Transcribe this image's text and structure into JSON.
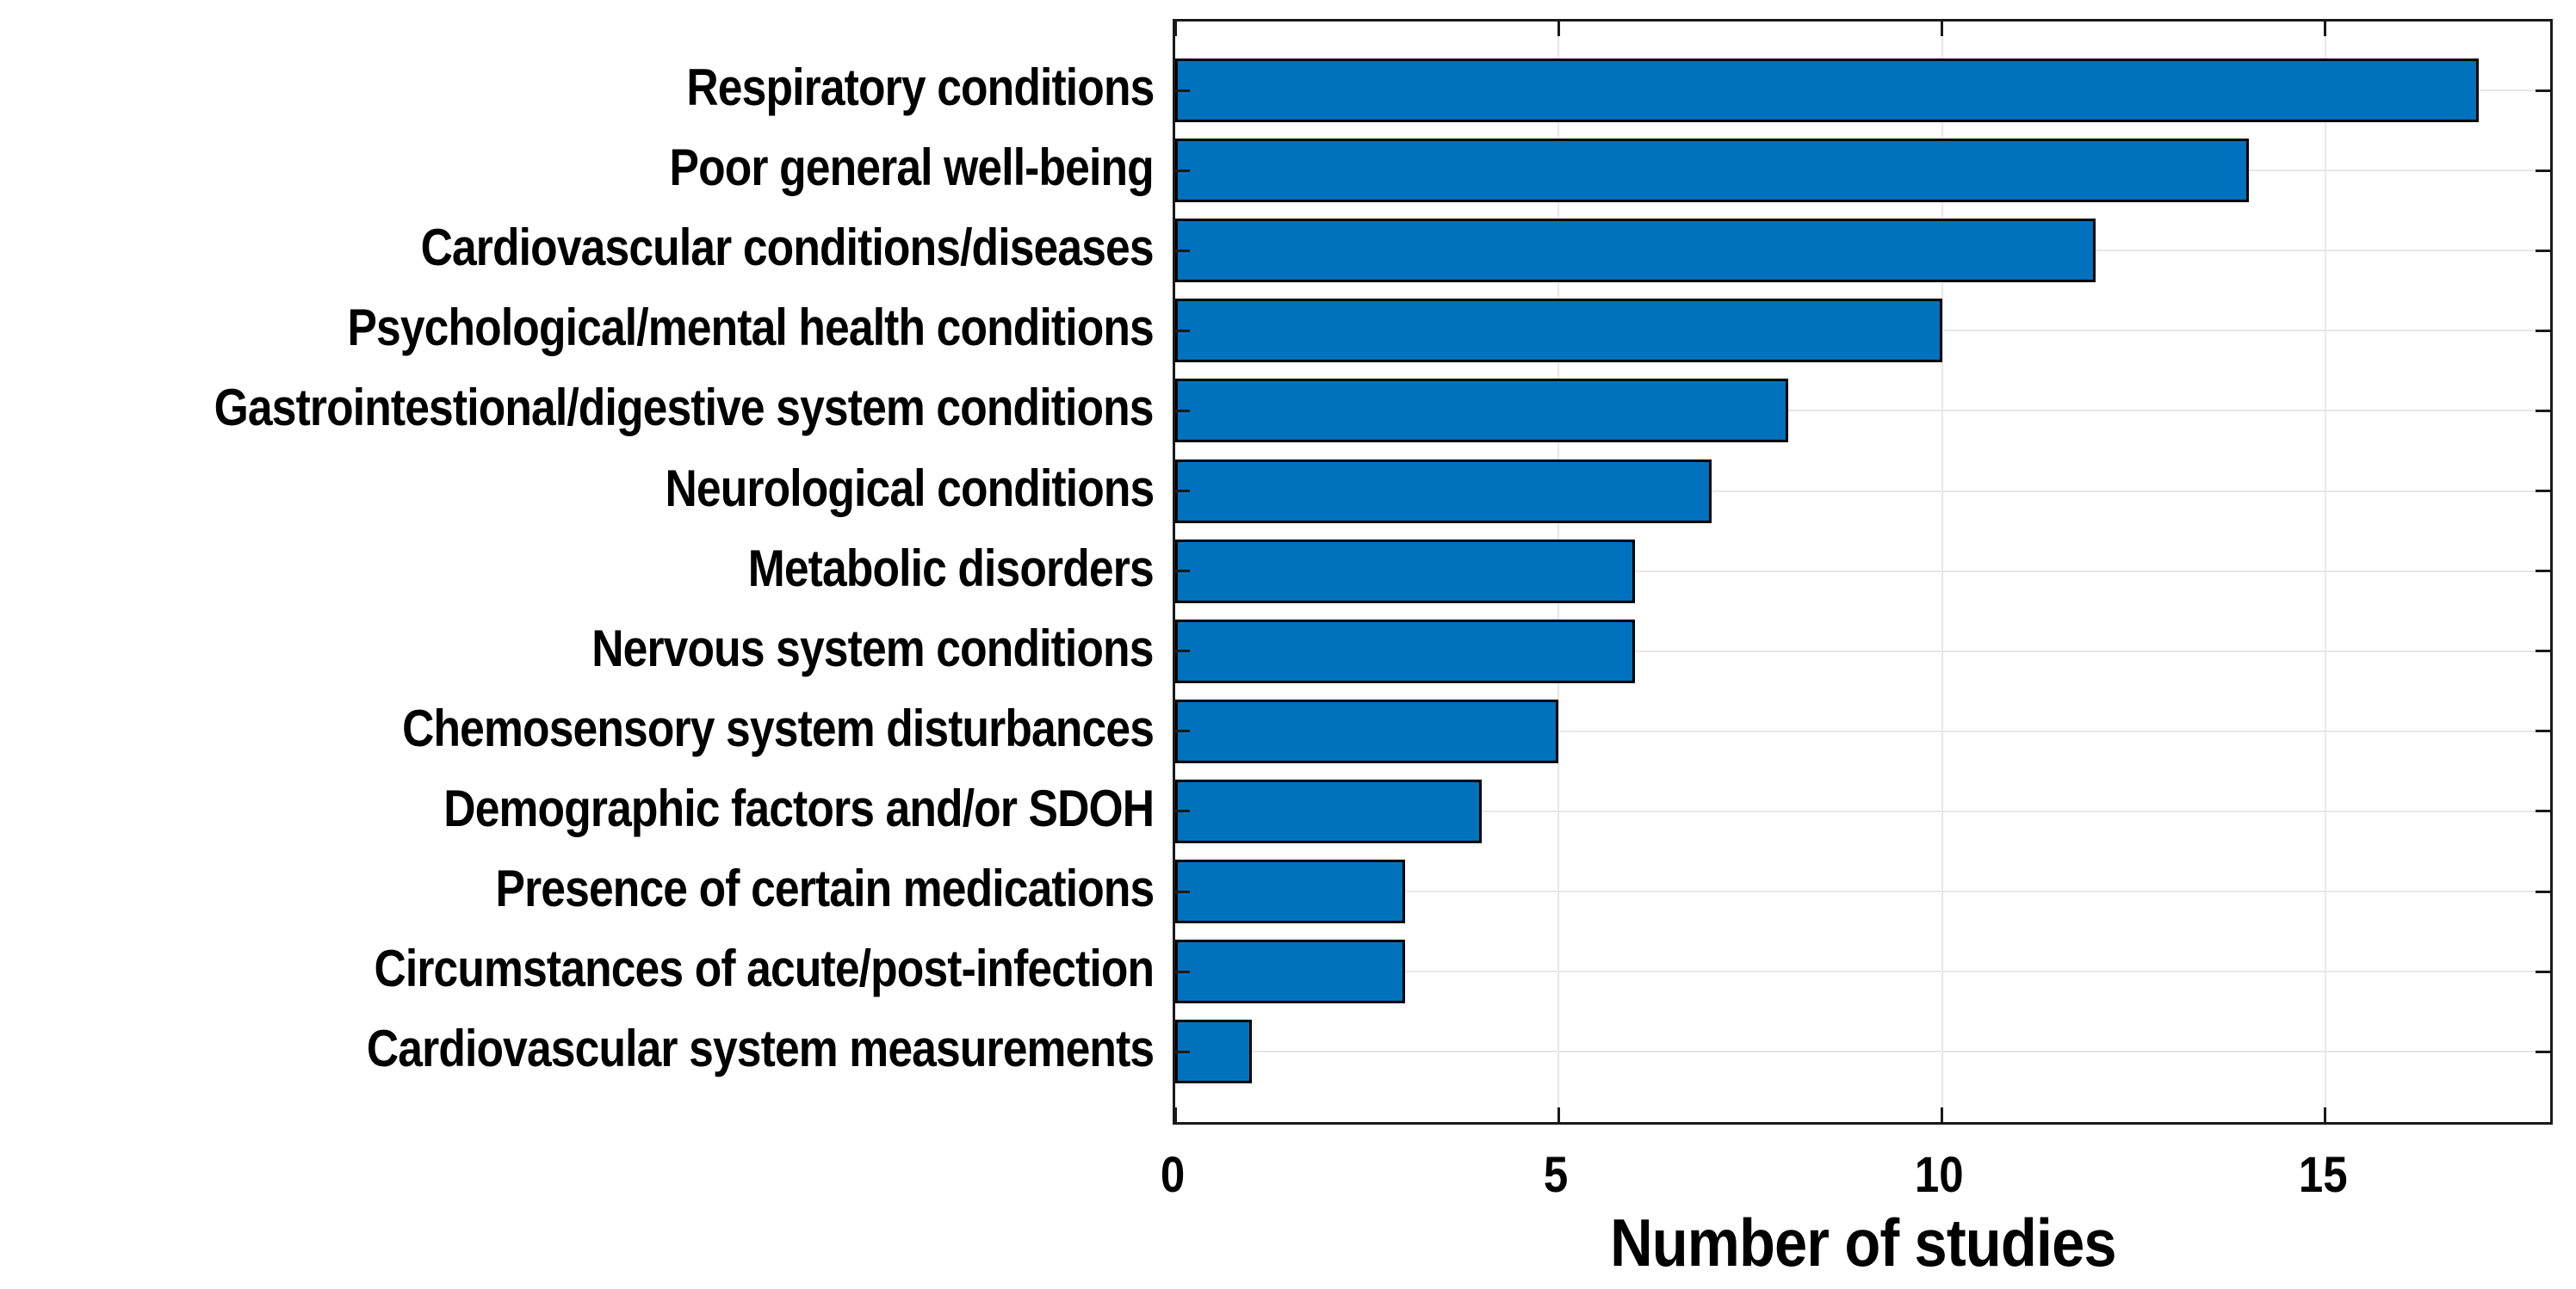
{
  "chart_data": {
    "type": "bar",
    "orientation": "horizontal",
    "title": "",
    "xlabel": "Number of studies",
    "ylabel": "",
    "categories": [
      "Respiratory conditions",
      "Poor general well-being",
      "Cardiovascular conditions/diseases",
      "Psychological/mental health conditions",
      "Gastrointestional/digestive system conditions",
      "Neurological conditions",
      "Metabolic disorders",
      "Nervous system conditions",
      "Chemosensory system disturbances",
      "Demographic factors and/or SDOH",
      "Presence of certain medications",
      "Circumstances of acute/post-infection",
      "Cardiovascular system measurements"
    ],
    "values": [
      17,
      14,
      12,
      10,
      8,
      7,
      6,
      6,
      5,
      4,
      3,
      3,
      1
    ],
    "xlim": [
      0,
      18
    ],
    "xticks": [
      0,
      5,
      10,
      15
    ],
    "grid": true,
    "legend": "none",
    "bar_color": "#0072BD",
    "bar_edge_color": "#000000",
    "axis_color": "#1a1a1a",
    "grid_color": "#e7e7e7",
    "background": "#ffffff"
  }
}
